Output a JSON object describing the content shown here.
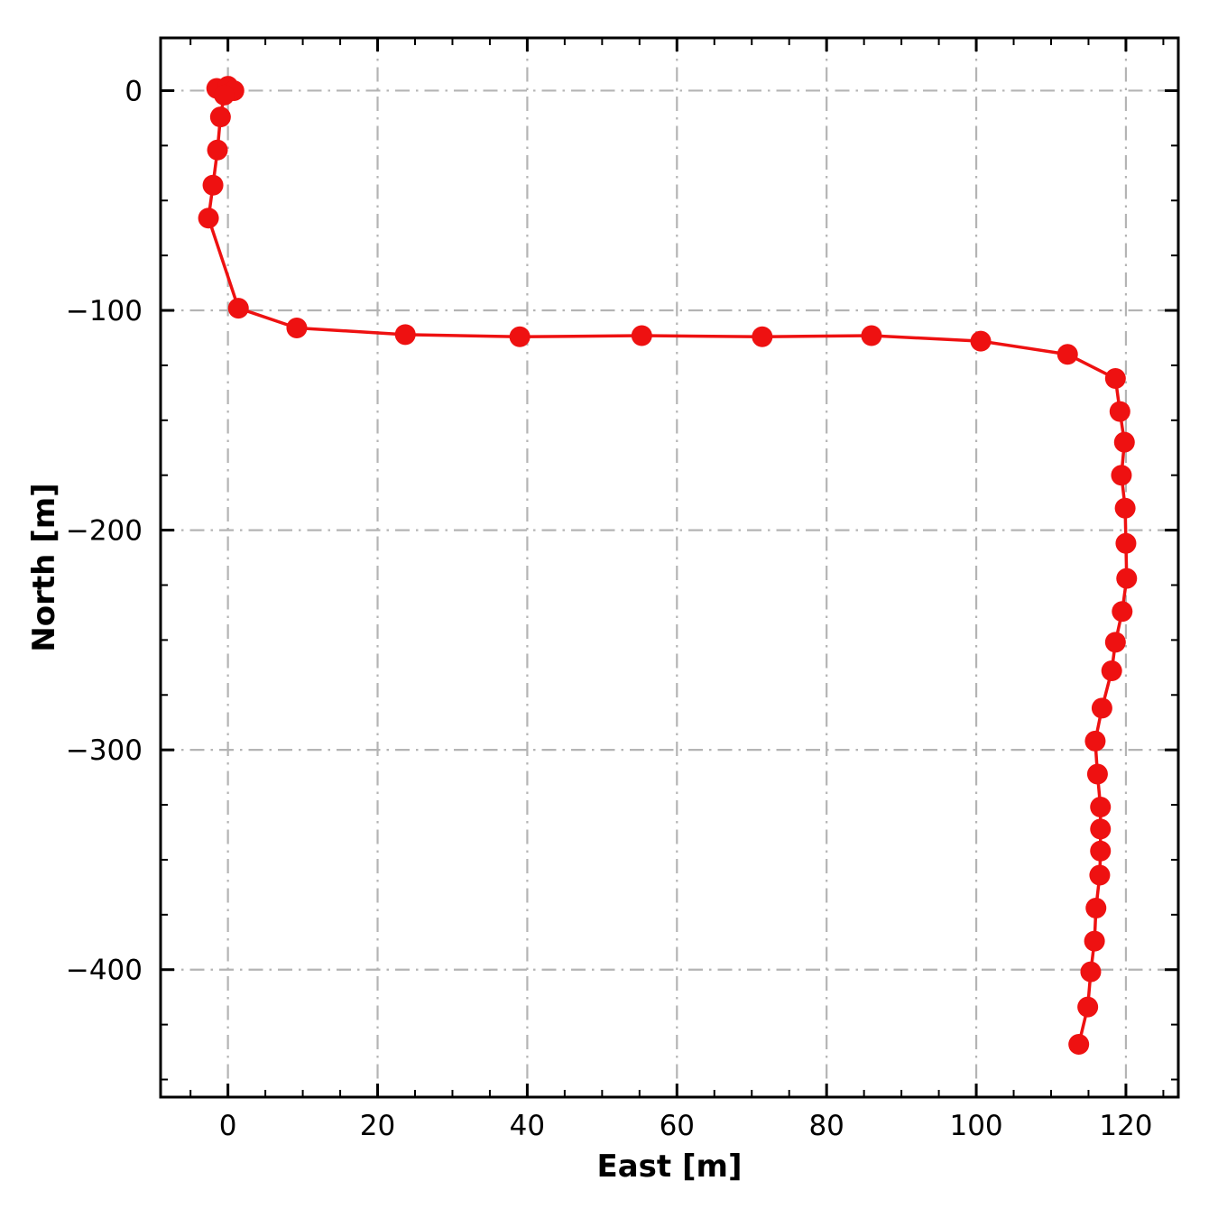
{
  "chart_data": {
    "type": "line",
    "title": "",
    "xlabel": "East [m]",
    "ylabel": "North [m]",
    "xlim": [
      -9,
      127
    ],
    "ylim": [
      -458,
      24
    ],
    "xticks": [
      0,
      20,
      40,
      60,
      80,
      100,
      120
    ],
    "yticks": [
      0,
      -100,
      -200,
      -300,
      -400
    ],
    "x_minor_step": 5,
    "y_minor_step": 25,
    "grid": true,
    "grid_style": "dash-dot",
    "grid_color": "#b4b4b4",
    "line_color": "#ee1111",
    "marker": "circle",
    "marker_radius": 11.5,
    "line_width": 3.5,
    "legend": "none",
    "background": "#ffffff",
    "series": [
      {
        "name": "trajectory",
        "x": [
          -1.5,
          0,
          0.8,
          -0.5,
          -1,
          -1.4,
          -2,
          -2.6,
          1.4,
          9.2,
          23.7,
          39,
          55.3,
          71.4,
          86,
          100.6,
          112.2,
          118.6,
          119.2,
          119.8,
          119.4,
          119.9,
          120,
          120.1,
          119.5,
          118.6,
          118.1,
          116.8,
          115.9,
          116.2,
          116.6,
          116.6,
          116.6,
          116.5,
          116,
          115.8,
          115.3,
          114.9,
          113.7
        ],
        "y": [
          1,
          2,
          0,
          -2,
          -12,
          -27,
          -43,
          -58,
          -99,
          -108,
          -111,
          -112,
          -111.5,
          -112,
          -111.5,
          -114,
          -120,
          -131,
          -146,
          -160,
          -175,
          -190,
          -206,
          -222,
          -237,
          -251,
          -264,
          -281,
          -296,
          -311,
          -326,
          -336,
          -346,
          -357,
          -372,
          -387,
          -401,
          -417,
          -434
        ]
      }
    ]
  }
}
